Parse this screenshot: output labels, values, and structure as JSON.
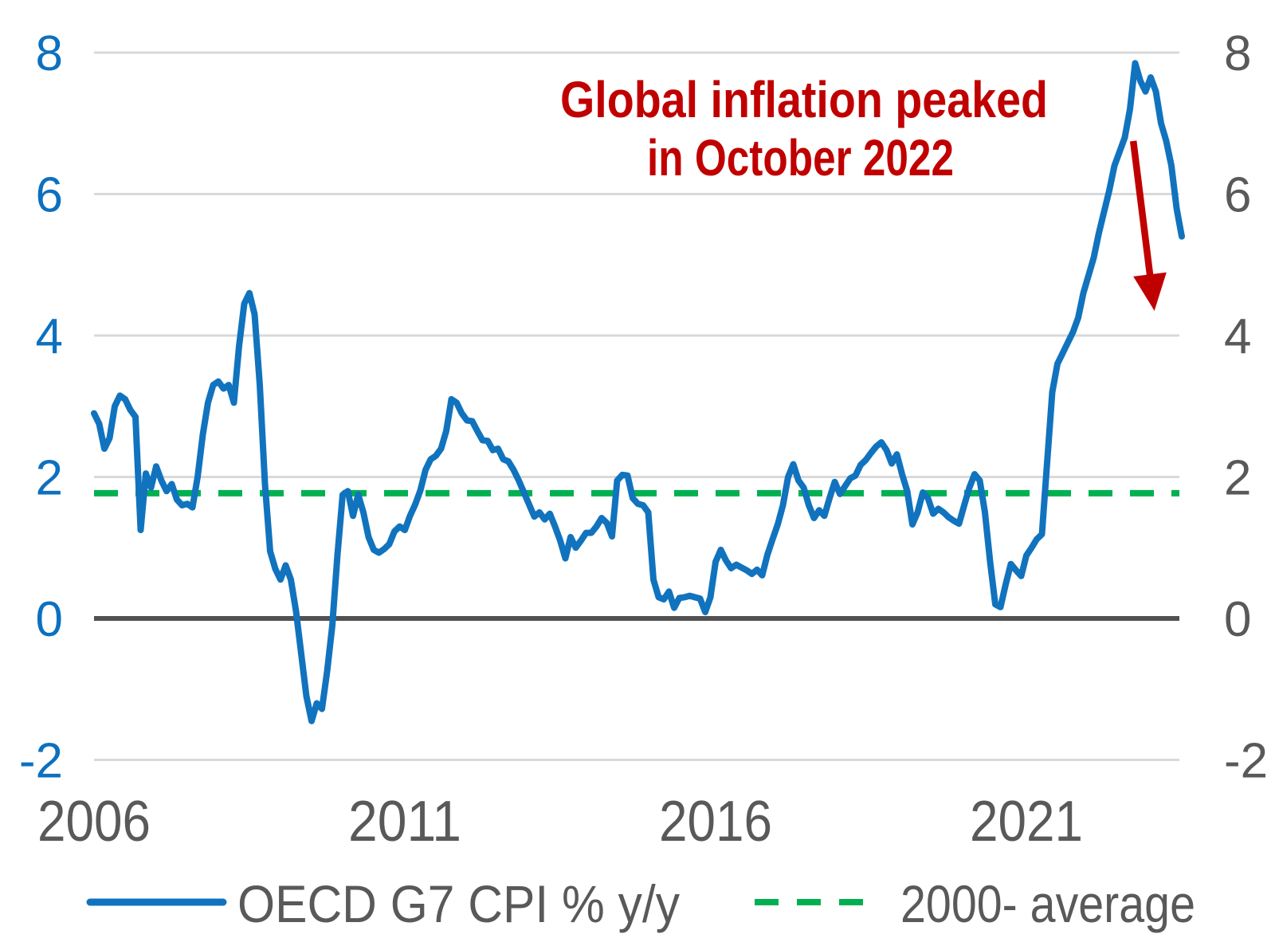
{
  "chart_data": {
    "type": "line",
    "title": "",
    "x_axis": {
      "tick_years": [
        2006,
        2011,
        2016,
        2021
      ],
      "start": "2006-01",
      "end": "2023-07",
      "frequency": "monthly"
    },
    "y_axis": {
      "ticks": [
        8,
        6,
        4,
        2,
        0,
        -2
      ],
      "range": [
        -2.6,
        8.6
      ],
      "left_label_color": "#0d70bf",
      "right_label_color": "#595959"
    },
    "grid": {
      "color": "#d9d9d9",
      "zero_line_color": "#515151",
      "show": true
    },
    "legend_position": "bottom",
    "series": [
      {
        "name": "OECD G7 CPI % y/y",
        "style": "solid",
        "color": "#1173be",
        "start": "2006-01",
        "values": [
          2.9,
          2.75,
          2.4,
          2.55,
          3.0,
          3.15,
          3.1,
          2.95,
          2.85,
          1.25,
          2.05,
          1.85,
          2.15,
          1.95,
          1.8,
          1.9,
          1.68,
          1.6,
          1.62,
          1.57,
          2.0,
          2.6,
          3.05,
          3.3,
          3.35,
          3.25,
          3.3,
          3.05,
          3.85,
          4.45,
          4.6,
          4.3,
          3.3,
          1.9,
          0.95,
          0.7,
          0.55,
          0.75,
          0.55,
          0.1,
          -0.5,
          -1.1,
          -1.45,
          -1.2,
          -1.28,
          -0.75,
          -0.1,
          0.9,
          1.75,
          1.8,
          1.45,
          1.75,
          1.5,
          1.15,
          0.97,
          0.93,
          0.98,
          1.05,
          1.23,
          1.3,
          1.25,
          1.45,
          1.61,
          1.81,
          2.1,
          2.25,
          2.3,
          2.4,
          2.65,
          3.1,
          3.05,
          2.9,
          2.8,
          2.79,
          2.65,
          2.52,
          2.51,
          2.38,
          2.4,
          2.25,
          2.22,
          2.1,
          1.95,
          1.78,
          1.61,
          1.44,
          1.5,
          1.4,
          1.48,
          1.3,
          1.1,
          0.85,
          1.15,
          1.0,
          1.1,
          1.21,
          1.21,
          1.3,
          1.42,
          1.35,
          1.16,
          1.95,
          2.03,
          2.02,
          1.7,
          1.62,
          1.6,
          1.5,
          0.55,
          0.3,
          0.27,
          0.38,
          0.15,
          0.29,
          0.3,
          0.32,
          0.3,
          0.28,
          0.09,
          0.3,
          0.8,
          0.97,
          0.82,
          0.71,
          0.76,
          0.72,
          0.68,
          0.63,
          0.69,
          0.61,
          0.9,
          1.12,
          1.33,
          1.6,
          2.0,
          2.18,
          1.95,
          1.85,
          1.6,
          1.42,
          1.53,
          1.45,
          1.7,
          1.93,
          1.76,
          1.87,
          1.98,
          2.02,
          2.17,
          2.24,
          2.34,
          2.43,
          2.49,
          2.38,
          2.19,
          2.32,
          2.04,
          1.8,
          1.33,
          1.5,
          1.78,
          1.7,
          1.48,
          1.55,
          1.5,
          1.43,
          1.38,
          1.34,
          1.6,
          1.85,
          2.04,
          1.95,
          1.5,
          0.8,
          0.2,
          0.16,
          0.48,
          0.77,
          0.68,
          0.6,
          0.89,
          1.0,
          1.12,
          1.19,
          2.2,
          3.2,
          3.6,
          3.75,
          3.9,
          4.05,
          4.25,
          4.6,
          4.85,
          5.1,
          5.45,
          5.75,
          6.05,
          6.4,
          6.6,
          6.8,
          7.2,
          7.85,
          7.6,
          7.45,
          7.65,
          7.45,
          7.0,
          6.75,
          6.4,
          5.8,
          5.4
        ]
      },
      {
        "name": "2000- average",
        "style": "dashed",
        "color": "#00b050",
        "value": 1.77
      }
    ],
    "annotation": {
      "text_line1": "Global inflation peaked",
      "text_line2": "in October 2022",
      "color": "#c00000",
      "arrow": {
        "color": "#c00000",
        "from": {
          "year": 2022.72,
          "value": 6.75
        },
        "to": {
          "year": 2023.06,
          "value": 4.35
        }
      }
    }
  },
  "legend": {
    "items": [
      {
        "label": "OECD G7 CPI % y/y",
        "style": "solid",
        "color": "#1173be"
      },
      {
        "label": "2000- average",
        "style": "dashed",
        "color": "#00b050"
      }
    ]
  }
}
